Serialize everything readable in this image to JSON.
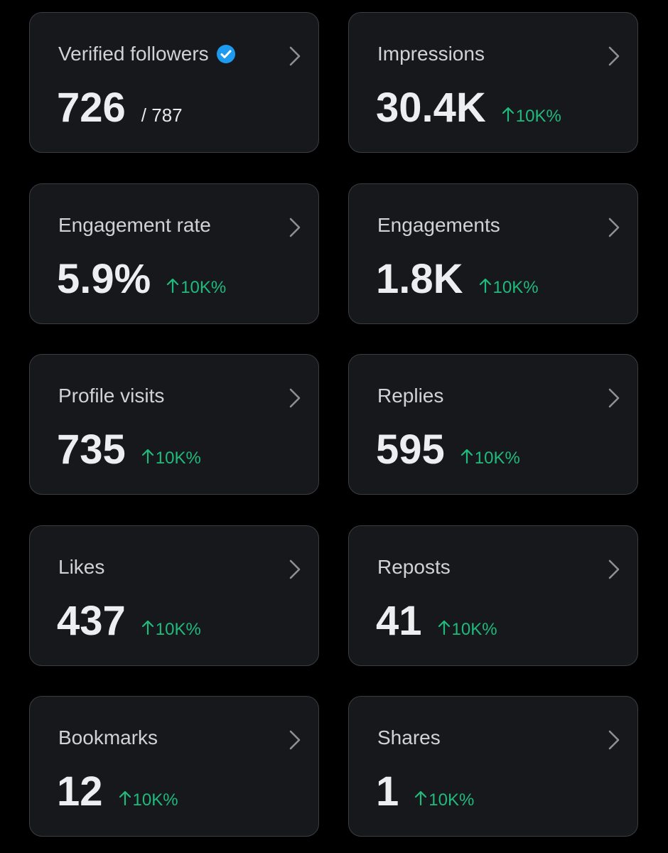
{
  "cards": [
    {
      "label": "Verified followers",
      "value": "726",
      "total": "/ 787"
    },
    {
      "label": "Impressions",
      "value": "30.4K",
      "change": "10K%"
    },
    {
      "label": "Engagement rate",
      "value": "5.9%",
      "change": "10K%"
    },
    {
      "label": "Engagements",
      "value": "1.8K",
      "change": "10K%"
    },
    {
      "label": "Profile visits",
      "value": "735",
      "change": "10K%"
    },
    {
      "label": "Replies",
      "value": "595",
      "change": "10K%"
    },
    {
      "label": "Likes",
      "value": "437",
      "change": "10K%"
    },
    {
      "label": "Reposts",
      "value": "41",
      "change": "10K%"
    },
    {
      "label": "Bookmarks",
      "value": "12",
      "change": "10K%"
    },
    {
      "label": "Shares",
      "value": "1",
      "change": "10K%"
    }
  ]
}
